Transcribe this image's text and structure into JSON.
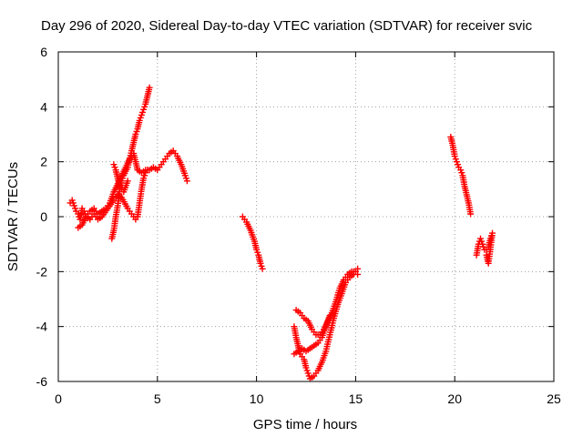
{
  "chart_data": {
    "type": "scatter",
    "title": "Day 296 of 2020, Sidereal Day-to-day VTEC variation (SDTVAR) for receiver svic",
    "xlabel": "GPS time / hours",
    "ylabel": "SDTVAR / TECUs",
    "xlim": [
      0,
      25
    ],
    "ylim": [
      -6,
      6
    ],
    "xticks": [
      "0",
      "5",
      "10",
      "15",
      "20",
      "25"
    ],
    "yticks": [
      "-6",
      "-4",
      "-2",
      "0",
      "2",
      "4",
      "6"
    ],
    "grid": true,
    "marker": "plus",
    "color": "#ff0000",
    "series": [
      {
        "name": "svic",
        "segments": [
          [
            [
              0.6,
              0.5
            ],
            [
              0.7,
              0.6
            ],
            [
              0.8,
              0.4
            ],
            [
              0.9,
              0.2
            ],
            [
              1.0,
              0.1
            ],
            [
              1.1,
              -0.1
            ],
            [
              1.2,
              0.3
            ],
            [
              1.3,
              0.2
            ],
            [
              1.4,
              0.0
            ],
            [
              1.5,
              0.1
            ],
            [
              1.6,
              0.2
            ],
            [
              1.8,
              0.3
            ],
            [
              2.0,
              0.1
            ],
            [
              2.2,
              0.2
            ],
            [
              2.4,
              0.3
            ],
            [
              2.6,
              0.5
            ],
            [
              2.8,
              0.9
            ],
            [
              3.0,
              1.2
            ],
            [
              3.2,
              1.5
            ],
            [
              3.4,
              1.8
            ],
            [
              3.6,
              2.1
            ],
            [
              3.8,
              2.3
            ],
            [
              3.9,
              2.0
            ],
            [
              4.0,
              1.7
            ],
            [
              4.2,
              1.6
            ],
            [
              4.4,
              1.7
            ],
            [
              4.6,
              1.7
            ],
            [
              4.8,
              1.8
            ],
            [
              5.0,
              1.7
            ],
            [
              5.2,
              1.9
            ],
            [
              5.4,
              2.1
            ],
            [
              5.6,
              2.3
            ],
            [
              5.8,
              2.4
            ],
            [
              6.0,
              2.2
            ],
            [
              6.2,
              1.9
            ],
            [
              6.4,
              1.5
            ],
            [
              6.5,
              1.3
            ]
          ],
          [
            [
              1.0,
              -0.4
            ],
            [
              1.2,
              -0.3
            ],
            [
              1.4,
              0.0
            ],
            [
              1.6,
              -0.1
            ],
            [
              1.8,
              0.1
            ],
            [
              2.0,
              -0.1
            ],
            [
              2.2,
              0.0
            ],
            [
              2.5,
              0.3
            ],
            [
              2.8,
              0.6
            ],
            [
              3.0,
              0.8
            ],
            [
              3.2,
              0.7
            ],
            [
              3.5,
              0.3
            ],
            [
              3.7,
              0.1
            ],
            [
              3.9,
              -0.1
            ],
            [
              4.0,
              0.0
            ],
            [
              4.1,
              0.5
            ],
            [
              4.2,
              1.0
            ],
            [
              4.3,
              1.4
            ],
            [
              4.4,
              1.6
            ],
            [
              4.5,
              1.7
            ]
          ],
          [
            [
              2.7,
              -0.8
            ],
            [
              2.8,
              -0.5
            ],
            [
              2.9,
              0.0
            ],
            [
              3.0,
              0.4
            ],
            [
              3.1,
              1.0
            ],
            [
              3.2,
              1.3
            ],
            [
              3.3,
              1.5
            ],
            [
              3.5,
              1.8
            ],
            [
              3.7,
              2.4
            ],
            [
              3.8,
              2.7
            ],
            [
              3.9,
              3.0
            ],
            [
              4.0,
              3.2
            ],
            [
              4.1,
              3.5
            ],
            [
              4.2,
              3.7
            ],
            [
              4.3,
              3.9
            ],
            [
              4.4,
              4.1
            ],
            [
              4.5,
              4.4
            ],
            [
              4.6,
              4.7
            ]
          ],
          [
            [
              2.8,
              1.9
            ],
            [
              2.9,
              1.7
            ],
            [
              3.0,
              1.4
            ],
            [
              3.1,
              1.1
            ],
            [
              3.3,
              0.9
            ],
            [
              3.5,
              1.3
            ]
          ],
          [
            [
              9.3,
              0.0
            ],
            [
              9.5,
              -0.2
            ],
            [
              9.7,
              -0.5
            ],
            [
              9.9,
              -0.9
            ],
            [
              10.0,
              -1.2
            ],
            [
              10.1,
              -1.4
            ],
            [
              10.2,
              -1.7
            ],
            [
              10.3,
              -1.9
            ]
          ],
          [
            [
              11.9,
              -4.0
            ],
            [
              12.0,
              -4.4
            ],
            [
              12.1,
              -4.7
            ],
            [
              12.2,
              -5.0
            ],
            [
              12.4,
              -5.2
            ],
            [
              12.5,
              -5.5
            ],
            [
              12.6,
              -5.7
            ],
            [
              12.7,
              -5.9
            ],
            [
              12.9,
              -5.8
            ],
            [
              13.1,
              -5.6
            ],
            [
              13.3,
              -5.3
            ],
            [
              13.5,
              -4.9
            ],
            [
              13.7,
              -4.3
            ],
            [
              13.9,
              -3.7
            ],
            [
              14.1,
              -3.2
            ],
            [
              14.3,
              -2.8
            ],
            [
              14.5,
              -2.4
            ],
            [
              14.7,
              -2.2
            ],
            [
              14.9,
              -2.1
            ],
            [
              15.1,
              -1.9
            ]
          ],
          [
            [
              11.9,
              -5.0
            ],
            [
              12.1,
              -4.9
            ],
            [
              12.3,
              -4.8
            ],
            [
              12.5,
              -4.9
            ],
            [
              12.7,
              -4.8
            ],
            [
              12.9,
              -4.7
            ],
            [
              13.1,
              -4.6
            ],
            [
              13.3,
              -4.4
            ],
            [
              13.5,
              -4.0
            ],
            [
              13.7,
              -3.6
            ]
          ],
          [
            [
              12.0,
              -3.4
            ],
            [
              12.2,
              -3.5
            ],
            [
              12.4,
              -3.7
            ],
            [
              12.6,
              -3.8
            ],
            [
              12.8,
              -4.1
            ],
            [
              13.0,
              -4.3
            ],
            [
              13.2,
              -4.3
            ],
            [
              13.4,
              -4.1
            ],
            [
              13.6,
              -3.8
            ],
            [
              13.8,
              -3.5
            ],
            [
              14.0,
              -3.1
            ],
            [
              14.2,
              -2.6
            ],
            [
              14.4,
              -2.3
            ],
            [
              14.6,
              -2.1
            ],
            [
              14.8,
              -2.0
            ],
            [
              15.0,
              -2.0
            ],
            [
              15.1,
              -2.1
            ]
          ],
          [
            [
              19.8,
              2.9
            ],
            [
              19.9,
              2.6
            ],
            [
              20.0,
              2.2
            ],
            [
              20.1,
              2.0
            ],
            [
              20.2,
              1.8
            ],
            [
              20.3,
              1.7
            ],
            [
              20.4,
              1.5
            ],
            [
              20.5,
              1.1
            ],
            [
              20.6,
              0.8
            ],
            [
              20.7,
              0.5
            ],
            [
              20.8,
              0.1
            ]
          ],
          [
            [
              21.1,
              -1.4
            ],
            [
              21.2,
              -1.0
            ],
            [
              21.3,
              -0.8
            ],
            [
              21.4,
              -1.0
            ],
            [
              21.5,
              -1.2
            ],
            [
              21.6,
              -1.2
            ],
            [
              21.7,
              -1.1
            ],
            [
              21.8,
              -0.8
            ],
            [
              21.9,
              -0.6
            ],
            [
              21.7,
              -1.7
            ],
            [
              21.6,
              -1.4
            ]
          ]
        ]
      }
    ]
  }
}
